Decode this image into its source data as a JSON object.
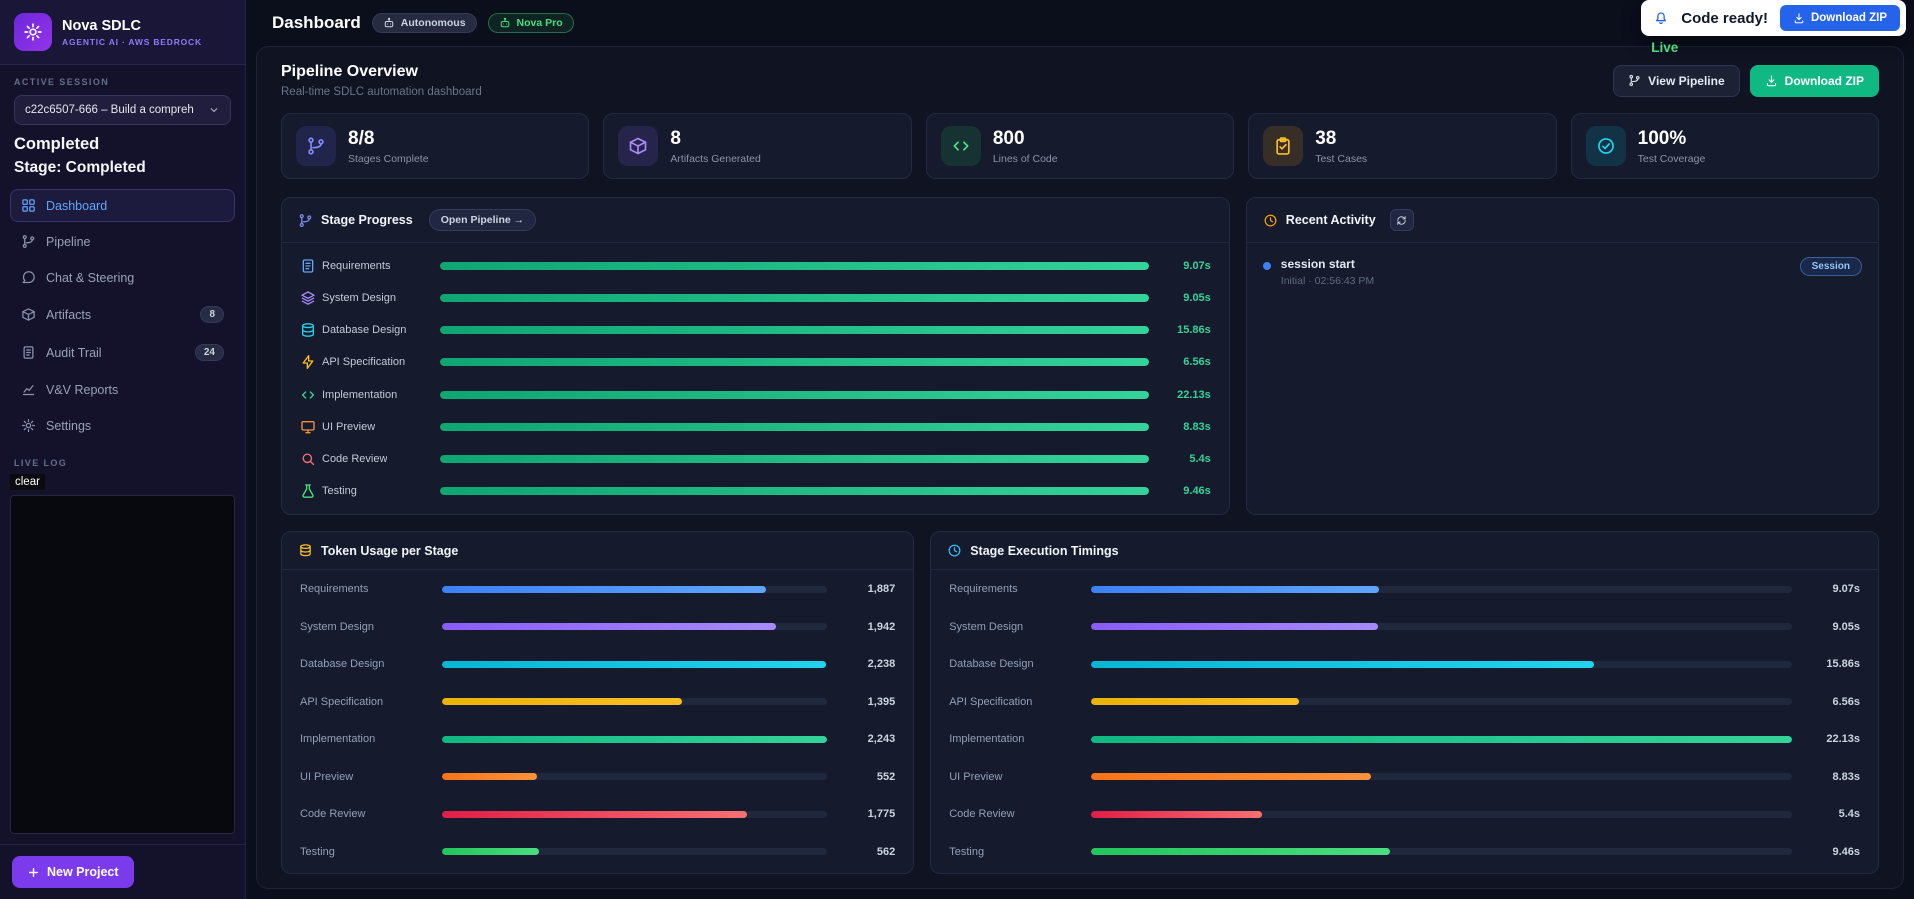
{
  "brand": {
    "title": "Nova SDLC",
    "subtitle": "AGENTIC AI · AWS BEDROCK",
    "logo_icon": "gear-icon"
  },
  "sidebar": {
    "session_label": "ACTIVE SESSION",
    "session_value": "c22c6507-666 – Build a compreh",
    "status_primary": "Completed",
    "status_secondary": "Stage: Completed",
    "nav": [
      {
        "label": "Dashboard",
        "icon": "grid",
        "active": true
      },
      {
        "label": "Pipeline",
        "icon": "branch"
      },
      {
        "label": "Chat & Steering",
        "icon": "chat"
      },
      {
        "label": "Artifacts",
        "icon": "box",
        "badge": "8"
      },
      {
        "label": "Audit Trail",
        "icon": "doc",
        "badge": "24"
      },
      {
        "label": "V&V Reports",
        "icon": "chart"
      },
      {
        "label": "Settings",
        "icon": "gear"
      }
    ],
    "live_log_label": "LIVE LOG",
    "clear_label": "clear",
    "new_project_label": "New Project"
  },
  "header": {
    "title": "Dashboard",
    "mode_badge": "Autonomous",
    "model_badge": "Nova Pro",
    "toast": {
      "message": "Code ready!",
      "button_label": "Download ZIP"
    },
    "live_label": "Live"
  },
  "overview": {
    "title": "Pipeline Overview",
    "subtitle": "Real-time SDLC automation dashboard",
    "view_pipeline_label": "View Pipeline",
    "download_zip_label": "Download ZIP",
    "stats": [
      {
        "value": "8/8",
        "label": "Stages Complete",
        "icon": "branch",
        "color": "#818cf8",
        "bg": "rgba(99,102,241,0.16)"
      },
      {
        "value": "8",
        "label": "Artifacts Generated",
        "icon": "box",
        "color": "#a78bfa",
        "bg": "rgba(139,92,246,0.16)"
      },
      {
        "value": "800",
        "label": "Lines of Code",
        "icon": "code",
        "color": "#4ade80",
        "bg": "rgba(34,197,94,0.14)"
      },
      {
        "value": "38",
        "label": "Test Cases",
        "icon": "clipboard",
        "color": "#fbbf24",
        "bg": "rgba(245,158,11,0.15)"
      },
      {
        "value": "100%",
        "label": "Test Coverage",
        "icon": "check",
        "color": "#22d3ee",
        "bg": "rgba(6,182,212,0.16)"
      }
    ]
  },
  "stage_progress": {
    "title": "Stage Progress",
    "open_pipeline_label": "Open Pipeline →",
    "bar_start": "#0ea671",
    "bar_end": "#34d399",
    "stages": [
      {
        "name": "Requirements",
        "time": "9.07s",
        "icon": "doc",
        "color": "#60a5fa"
      },
      {
        "name": "System Design",
        "time": "9.05s",
        "icon": "layers",
        "color": "#a78bfa"
      },
      {
        "name": "Database Design",
        "time": "15.86s",
        "icon": "db",
        "color": "#22d3ee"
      },
      {
        "name": "API Specification",
        "time": "6.56s",
        "icon": "zap",
        "color": "#fbbf24"
      },
      {
        "name": "Implementation",
        "time": "22.13s",
        "icon": "code",
        "color": "#34d399"
      },
      {
        "name": "UI Preview",
        "time": "8.83s",
        "icon": "monitor",
        "color": "#fb923c"
      },
      {
        "name": "Code Review",
        "time": "5.4s",
        "icon": "search",
        "color": "#f87171"
      },
      {
        "name": "Testing",
        "time": "9.46s",
        "icon": "flask",
        "color": "#4ade80"
      }
    ]
  },
  "recent_activity": {
    "title": "Recent Activity",
    "items": [
      {
        "title": "session start",
        "meta": "Initial · 02:56:43 PM",
        "badge": "Session"
      }
    ]
  },
  "token_usage": {
    "title": "Token Usage per Stage",
    "rows": [
      {
        "name": "Requirements",
        "value": 1887,
        "display": "1,887",
        "c1": "#3b82f6",
        "c2": "#60a5fa"
      },
      {
        "name": "System Design",
        "value": 1942,
        "display": "1,942",
        "c1": "#8b5cf6",
        "c2": "#a78bfa"
      },
      {
        "name": "Database Design",
        "value": 2238,
        "display": "2,238",
        "c1": "#06b6d4",
        "c2": "#22d3ee"
      },
      {
        "name": "API Specification",
        "value": 1395,
        "display": "1,395",
        "c1": "#eab308",
        "c2": "#fbbf24"
      },
      {
        "name": "Implementation",
        "value": 2243,
        "display": "2,243",
        "c1": "#10b981",
        "c2": "#34d399"
      },
      {
        "name": "UI Preview",
        "value": 552,
        "display": "552",
        "c1": "#f97316",
        "c2": "#fb923c"
      },
      {
        "name": "Code Review",
        "value": 1775,
        "display": "1,775",
        "c1": "#e11d48",
        "c2": "#f87171"
      },
      {
        "name": "Testing",
        "value": 562,
        "display": "562",
        "c1": "#22c55e",
        "c2": "#4ade80"
      }
    ]
  },
  "timings": {
    "title": "Stage Execution Timings",
    "rows": [
      {
        "name": "Requirements",
        "value": 9.07,
        "display": "9.07s",
        "c1": "#3b82f6",
        "c2": "#60a5fa"
      },
      {
        "name": "System Design",
        "value": 9.05,
        "display": "9.05s",
        "c1": "#8b5cf6",
        "c2": "#a78bfa"
      },
      {
        "name": "Database Design",
        "value": 15.86,
        "display": "15.86s",
        "c1": "#06b6d4",
        "c2": "#22d3ee"
      },
      {
        "name": "API Specification",
        "value": 6.56,
        "display": "6.56s",
        "c1": "#eab308",
        "c2": "#fbbf24"
      },
      {
        "name": "Implementation",
        "value": 22.13,
        "display": "22.13s",
        "c1": "#10b981",
        "c2": "#34d399"
      },
      {
        "name": "UI Preview",
        "value": 8.83,
        "display": "8.83s",
        "c1": "#f97316",
        "c2": "#fb923c"
      },
      {
        "name": "Code Review",
        "value": 5.4,
        "display": "5.4s",
        "c1": "#e11d48",
        "c2": "#f87171"
      },
      {
        "name": "Testing",
        "value": 9.46,
        "display": "9.46s",
        "c1": "#22c55e",
        "c2": "#4ade80"
      }
    ]
  }
}
